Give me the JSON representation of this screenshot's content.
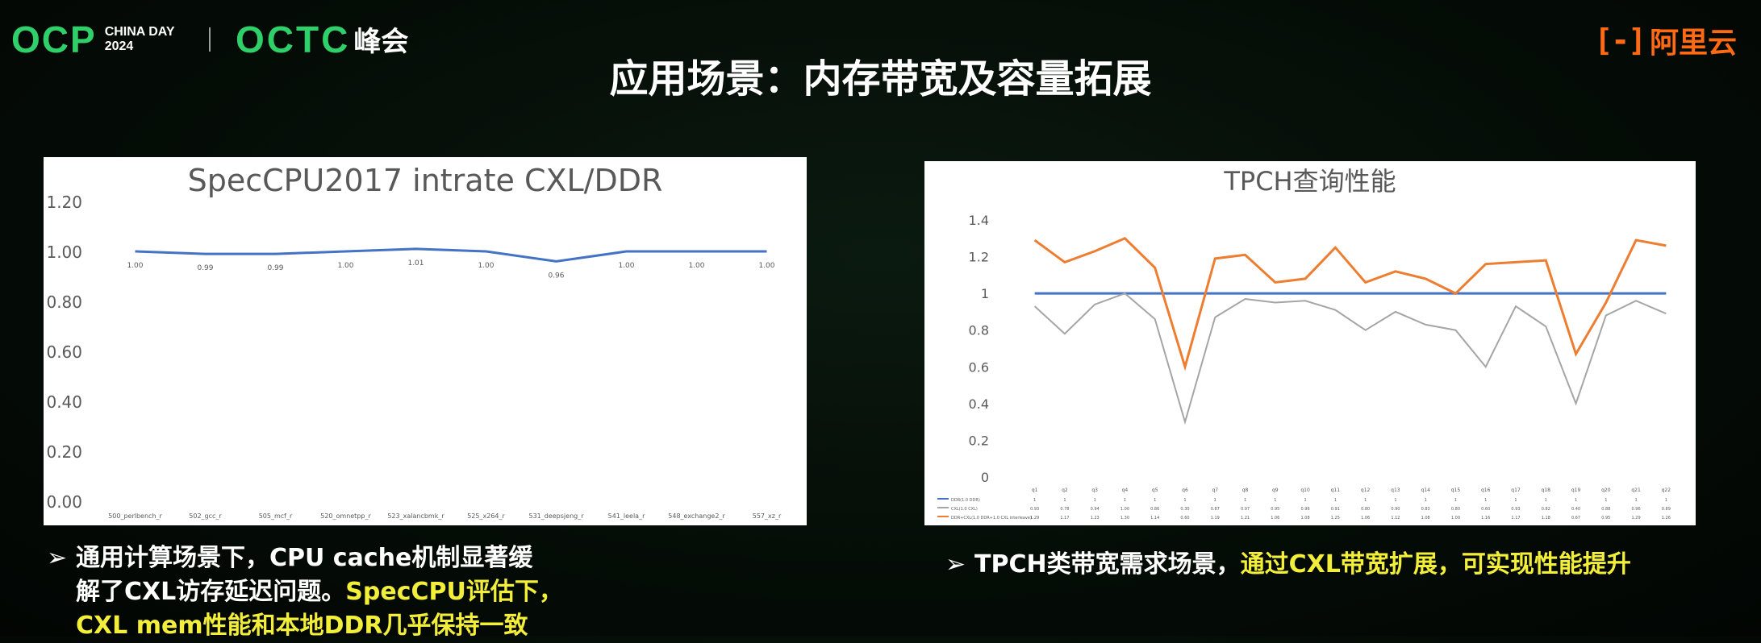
{
  "header": {
    "ocp_logo": "OCP",
    "ocp_event_line1": "CHINA DAY",
    "ocp_event_line2": "2024",
    "octc_logo": "OCTC",
    "octc_suffix": "峰会",
    "aliyun_mark": "[-]",
    "aliyun_name": "阿里云",
    "title": "应用场景：内存带宽及容量拓展"
  },
  "left_bullet": {
    "line1": "通用计算场景下，CPU cache机制显著缓",
    "line2_plain": "解了CXL访存延迟问题。",
    "line2_highlight": "SpecCPU评估下，",
    "line3_highlight": "CXL mem性能和本地DDR几乎保持一致"
  },
  "right_bullet": {
    "plain": "TPCH类带宽需求场景，",
    "highlight": "通过CXL带宽扩展，可实现性能提升"
  },
  "colors": {
    "accent_green": "#2fd06a",
    "aliyun_orange": "#ff6a13",
    "highlight_yellow": "#f2ee3a",
    "ddr_line": "#4472c4",
    "cxl_gray": "#a5a5a5",
    "cxl_expand_orange": "#ed7d31"
  },
  "chart_data": [
    {
      "type": "line",
      "title": "SpecCPU2017 intrate CXL/DDR",
      "categories": [
        "500_perlbench_r",
        "502_gcc_r",
        "505_mcf_r",
        "520_omnetpp_r",
        "523_xalancbmk_r",
        "525_x264_r",
        "531_deepsjeng_r",
        "541_leela_r",
        "548_exchange2_r",
        "557_xz_r"
      ],
      "series": [
        {
          "name": "",
          "values": [
            1.0,
            0.99,
            0.99,
            1.0,
            1.01,
            1.0,
            0.96,
            1.0,
            1.0,
            1.0
          ],
          "labels": [
            "1.00",
            "0.99",
            "0.99",
            "1.00",
            "1.01",
            "1.00",
            "0.96",
            "1.00",
            "1.00",
            "1.00"
          ]
        }
      ],
      "yticks": [
        "0.00",
        "0.20",
        "0.40",
        "0.60",
        "0.80",
        "1.00",
        "1.20"
      ],
      "ylim": [
        0,
        1.2
      ],
      "grid": false,
      "legend": "none"
    },
    {
      "type": "line",
      "title": "TPCH查询性能",
      "categories": [
        "q1",
        "q2",
        "q3",
        "q4",
        "q5",
        "q6",
        "q7",
        "q8",
        "q9",
        "q10",
        "q11",
        "q12",
        "q13",
        "q14",
        "q15",
        "q16",
        "q17",
        "q18",
        "q19",
        "q20",
        "q21",
        "q22"
      ],
      "series": [
        {
          "name": "DDR(1.0 DDR)",
          "values": [
            1,
            1,
            1,
            1,
            1,
            1,
            1,
            1,
            1,
            1,
            1,
            1,
            1,
            1,
            1,
            1,
            1,
            1,
            1,
            1,
            1,
            1
          ],
          "labels": [
            "1",
            "1",
            "1",
            "1",
            "1",
            "1",
            "1",
            "1",
            "1",
            "1",
            "1",
            "1",
            "1",
            "1",
            "1",
            "1",
            "1",
            "1",
            "1",
            "1",
            "1",
            "1"
          ]
        },
        {
          "name": "CXL(1.0 CXL)",
          "values": [
            0.93,
            0.78,
            0.94,
            1.0,
            0.86,
            0.3,
            0.87,
            0.97,
            0.95,
            0.96,
            0.91,
            0.8,
            0.9,
            0.83,
            0.8,
            0.6,
            0.93,
            0.82,
            0.4,
            0.88,
            0.96,
            0.89
          ],
          "labels": [
            "0.93",
            "0.78",
            "0.94",
            "1.00",
            "0.86",
            "0.30",
            "0.87",
            "0.97",
            "0.95",
            "0.96",
            "0.91",
            "0.80",
            "0.90",
            "0.83",
            "0.80",
            "0.60",
            "0.93",
            "0.82",
            "0.40",
            "0.88",
            "0.96",
            "0.89"
          ]
        },
        {
          "name": "DDR+CXL(1.0 DDR+1.0 CXL interleave)",
          "values": [
            1.29,
            1.17,
            1.23,
            1.3,
            1.14,
            0.6,
            1.19,
            1.21,
            1.06,
            1.08,
            1.25,
            1.06,
            1.12,
            1.08,
            1.0,
            1.16,
            1.17,
            1.18,
            0.67,
            0.95,
            1.29,
            1.26
          ],
          "labels": [
            "1.29",
            "1.17",
            "1.23",
            "1.30",
            "1.14",
            "0.60",
            "1.19",
            "1.21",
            "1.06",
            "1.08",
            "1.25",
            "1.06",
            "1.12",
            "1.08",
            "1.00",
            "1.16",
            "1.17",
            "1.18",
            "0.67",
            "0.95",
            "1.29",
            "1.26"
          ]
        }
      ],
      "yticks": [
        "0",
        "0.2",
        "0.4",
        "0.6",
        "0.8",
        "1",
        "1.2",
        "1.4"
      ],
      "ylim": [
        0,
        1.4
      ],
      "grid": false,
      "legend": "bottom-table"
    }
  ]
}
